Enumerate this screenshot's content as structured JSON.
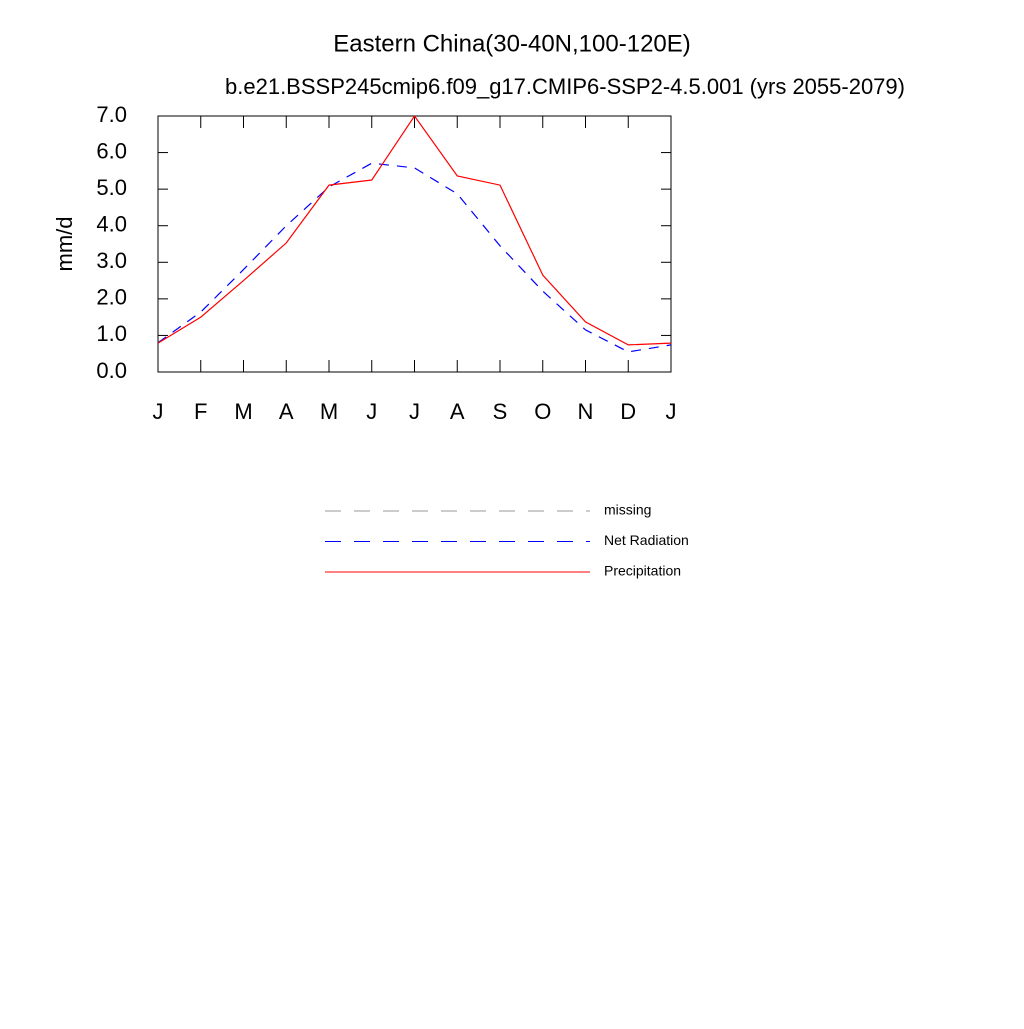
{
  "chart_data": {
    "type": "line",
    "title": "Eastern China(30-40N,100-120E)",
    "subtitle": "b.e21.BSSP245cmip6.f09_g17.CMIP6-SSP2-4.5.001 (yrs 2055-2079)",
    "y_label": "mm/d",
    "categories": [
      "J",
      "F",
      "M",
      "A",
      "M",
      "J",
      "J",
      "A",
      "S",
      "O",
      "N",
      "D",
      "J"
    ],
    "ylim": [
      0,
      7
    ],
    "yticks": [
      {
        "value": 0,
        "label": "0.0"
      },
      {
        "value": 1,
        "label": "1.0"
      },
      {
        "value": 2,
        "label": "2.0"
      },
      {
        "value": 3,
        "label": "3.0"
      },
      {
        "value": 4,
        "label": "4.0"
      },
      {
        "value": 5,
        "label": "5.0"
      },
      {
        "value": 6,
        "label": "6.0"
      },
      {
        "value": 7,
        "label": "7.0"
      }
    ],
    "series": [
      {
        "name": "missing",
        "color": "#999999",
        "linestyle": "dashed",
        "values": [
          null,
          null,
          null,
          null,
          null,
          null,
          null,
          null,
          null,
          null,
          null,
          null,
          null
        ]
      },
      {
        "name": "Net Radiation",
        "color": "#0000ff",
        "linestyle": "dashed",
        "values": [
          0.8,
          1.64,
          2.8,
          4.0,
          5.06,
          5.71,
          5.58,
          4.87,
          3.45,
          2.21,
          1.15,
          0.55,
          0.74
        ]
      },
      {
        "name": "Precipitation",
        "color": "#ff0000",
        "linestyle": "solid",
        "values": [
          0.79,
          1.5,
          2.5,
          3.53,
          5.11,
          5.25,
          7.0,
          5.36,
          5.11,
          2.65,
          1.37,
          0.74,
          0.79
        ]
      }
    ]
  }
}
